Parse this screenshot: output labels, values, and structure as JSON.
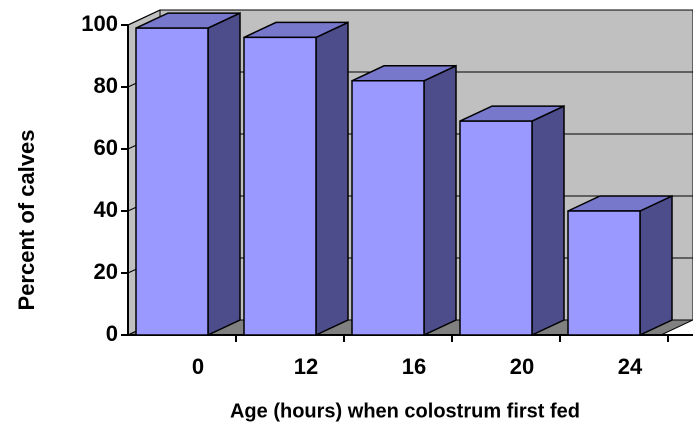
{
  "chart_data": {
    "type": "bar3d",
    "x_label": "Age (hours) when colostrum first fed",
    "y_label": "Percent of calves",
    "categories": [
      "0",
      "12",
      "16",
      "20",
      "24"
    ],
    "values": [
      99,
      96,
      82,
      69,
      40
    ],
    "color": "#9999ff",
    "ylim": [
      0,
      100
    ],
    "yticks": [
      0,
      20,
      40,
      60,
      80,
      100
    ],
    "grid": true
  }
}
